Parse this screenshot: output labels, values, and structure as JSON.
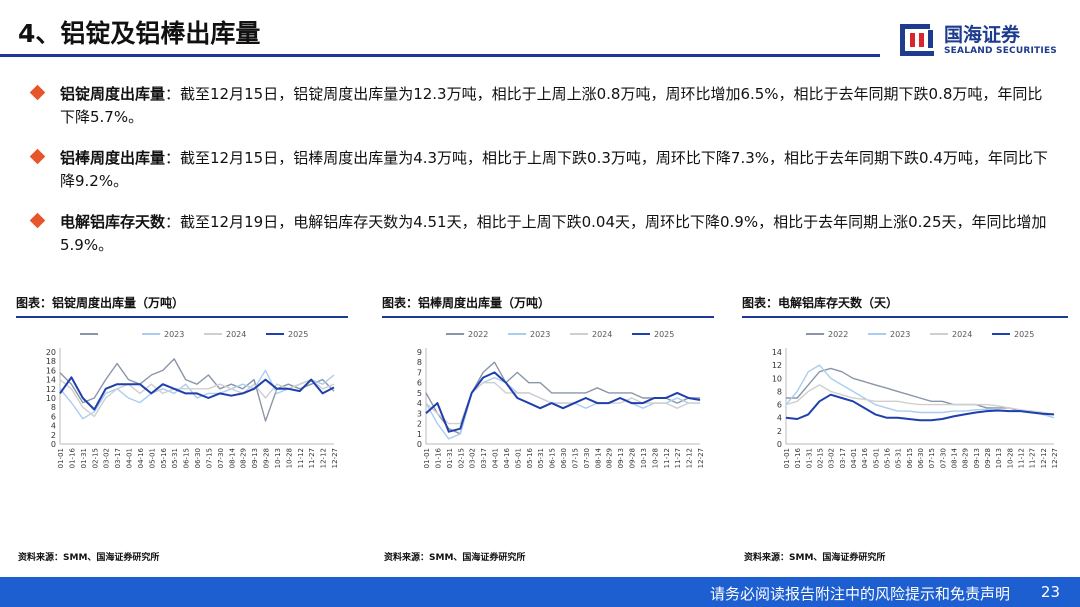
{
  "header": {
    "title": "4、铝锭及铝棒出库量"
  },
  "logo": {
    "name_cn": "国海证券",
    "name_en": "SEALAND SECURITIES",
    "colors": {
      "blue": "#1d3b8f",
      "red": "#d9262d"
    }
  },
  "bullets": [
    {
      "label": "铝锭周度出库量",
      "text": "：截至12月15日，铝锭周度出库量为12.3万吨，相比于上周上涨0.8万吨，周环比增加6.5%，相比于去年同期下跌0.8万吨，年同比下降5.7%。"
    },
    {
      "label": "铝棒周度出库量",
      "text": "：截至12月15日，铝棒周度出库量为4.3万吨，相比于上周下跌0.3万吨，周环比下降7.3%，相比于去年同期下跌0.4万吨，年同比下降9.2%。"
    },
    {
      "label": "电解铝库存天数",
      "text": "：截至12月19日，电解铝库存天数为4.51天，相比于上周下跌0.04天，周环比下降0.9%，相比于去年同期上涨0.25天，年同比增加5.9%。"
    }
  ],
  "footer": {
    "disclaimer": "请务必阅读报告附注中的风险提示和免责声明",
    "page": "23"
  },
  "series_colors": {
    "2022": "#8a96a8",
    "2023": "#a9cdf0",
    "2024": "#cfcfcf",
    "2025": "#1f3fae"
  },
  "chart_data": [
    {
      "type": "line",
      "panel_title": "图表：铝锭周度出库量（万吨）",
      "source": "资料来源：SMM、国海证券研究所",
      "x_ticks": [
        "01-01",
        "01-16",
        "01-31",
        "02-15",
        "03-02",
        "03-17",
        "04-01",
        "04-16",
        "05-01",
        "05-16",
        "05-31",
        "06-15",
        "06-30",
        "07-15",
        "07-30",
        "08-14",
        "08-29",
        "09-13",
        "09-28",
        "10-13",
        "10-28",
        "11-12",
        "11-27",
        "12-12",
        "12-27"
      ],
      "ylim": [
        0,
        20
      ],
      "y_ticks": [
        0,
        2,
        4,
        6,
        8,
        10,
        12,
        14,
        16,
        18,
        20
      ],
      "series": [
        {
          "name": "",
          "values": [
            15.5,
            13,
            9,
            10,
            14,
            17.5,
            14,
            13,
            15,
            16,
            18.5,
            14,
            13,
            15,
            12,
            13,
            12,
            14,
            5,
            12,
            13,
            12,
            13,
            14,
            11.5
          ]
        },
        {
          "name": "2023",
          "values": [
            12,
            9,
            5.5,
            7,
            11,
            12,
            10,
            9,
            11,
            12,
            11,
            13,
            10,
            11,
            11,
            12,
            13,
            12,
            16,
            11,
            12,
            13,
            14,
            13,
            15
          ]
        },
        {
          "name": "2024",
          "values": [
            14,
            12,
            8,
            6,
            10,
            12,
            13,
            11,
            13,
            11,
            12,
            12,
            12,
            12,
            13,
            12,
            11,
            13,
            10,
            13,
            12,
            13,
            14,
            12,
            13
          ]
        },
        {
          "name": "2025",
          "values": [
            11,
            14.5,
            10,
            7.5,
            12,
            13,
            13,
            13,
            11,
            13,
            12,
            11,
            11,
            10,
            11,
            10.5,
            11,
            12,
            14,
            12,
            12,
            11.5,
            14,
            11,
            12.3
          ]
        }
      ]
    },
    {
      "type": "line",
      "panel_title": "图表：铝棒周度出库量（万吨）",
      "source": "资料来源：SMM、国海证券研究所",
      "x_ticks": [
        "01-01",
        "01-16",
        "01-31",
        "02-15",
        "03-02",
        "03-17",
        "04-01",
        "04-16",
        "05-01",
        "05-16",
        "05-31",
        "06-15",
        "06-30",
        "07-15",
        "07-30",
        "08-14",
        "08-29",
        "09-13",
        "09-28",
        "10-13",
        "10-28",
        "11-12",
        "11-27",
        "12-12",
        "12-27"
      ],
      "ylim": [
        0,
        9
      ],
      "y_ticks": [
        0,
        1,
        2,
        3,
        4,
        5,
        6,
        7,
        8,
        9
      ],
      "series": [
        {
          "name": "2022",
          "values": [
            5,
            3,
            1.5,
            1,
            5,
            7,
            8,
            6,
            7,
            6,
            6,
            5,
            5,
            5,
            5,
            5.5,
            5,
            5,
            5,
            4.5,
            4.5,
            4.5,
            4,
            4.5,
            4.5
          ]
        },
        {
          "name": "2023",
          "values": [
            4,
            2,
            0.5,
            1,
            5,
            6,
            6.5,
            6,
            5,
            5,
            4.5,
            4,
            4,
            4,
            3.5,
            4,
            4,
            4.5,
            4,
            3.5,
            4,
            4,
            4.5,
            4,
            4
          ]
        },
        {
          "name": "2024",
          "values": [
            4,
            3,
            2,
            2,
            5,
            6,
            6,
            5,
            5,
            5,
            4.5,
            4,
            4,
            4,
            4.5,
            4,
            4,
            4,
            4.5,
            4,
            4,
            4,
            3.5,
            4,
            4
          ]
        },
        {
          "name": "2025",
          "values": [
            3,
            4,
            1.2,
            1.5,
            5,
            6.5,
            7,
            6,
            4.5,
            4,
            3.5,
            4,
            3.5,
            4,
            4.5,
            4,
            4,
            4.5,
            4,
            4,
            4.5,
            4.5,
            5,
            4.5,
            4.3
          ]
        }
      ]
    },
    {
      "type": "line",
      "panel_title": "图表：电解铝库存天数（天）",
      "source": "资料来源：SMM、国海证券研究所",
      "x_ticks": [
        "01-01",
        "01-16",
        "01-31",
        "02-15",
        "03-02",
        "03-17",
        "04-01",
        "04-16",
        "05-01",
        "05-16",
        "05-31",
        "06-15",
        "06-30",
        "07-15",
        "07-30",
        "08-14",
        "08-29",
        "09-13",
        "09-28",
        "10-13",
        "10-28",
        "11-12",
        "11-27",
        "12-12",
        "12-27"
      ],
      "ylim": [
        0,
        14
      ],
      "y_ticks": [
        0,
        2,
        4,
        6,
        8,
        10,
        12,
        14
      ],
      "series": [
        {
          "name": "2022",
          "values": [
            7,
            7,
            9,
            11,
            11.5,
            11,
            10,
            9.5,
            9,
            8.5,
            8,
            7.5,
            7,
            6.5,
            6.5,
            6,
            6,
            6,
            5.5,
            5.5,
            5.5,
            5,
            5,
            4.5,
            4.5
          ]
        },
        {
          "name": "2023",
          "values": [
            6,
            8,
            11,
            12,
            10,
            9,
            8,
            7,
            6,
            5.5,
            5,
            5,
            4.8,
            4.8,
            4.8,
            5,
            5,
            5.2,
            5.3,
            5.2,
            5,
            5,
            4.8,
            4.5,
            4
          ]
        },
        {
          "name": "2024",
          "values": [
            6,
            6.5,
            8,
            9,
            8,
            7.5,
            7,
            6.8,
            6.5,
            6.5,
            6.5,
            6.2,
            6,
            6,
            6,
            6,
            6,
            6,
            6,
            5.8,
            5.5,
            5.2,
            5,
            4.8,
            4.5
          ]
        },
        {
          "name": "2025",
          "values": [
            4,
            3.8,
            4.5,
            6.5,
            7.5,
            7,
            6.5,
            5.5,
            4.5,
            4,
            4,
            3.8,
            3.6,
            3.6,
            3.8,
            4.2,
            4.5,
            4.8,
            5,
            5.1,
            5,
            5,
            4.8,
            4.6,
            4.51
          ]
        }
      ]
    }
  ]
}
